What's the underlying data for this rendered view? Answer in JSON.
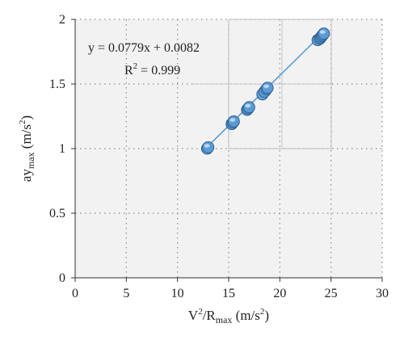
{
  "chart_data": {
    "type": "scatter",
    "title": "",
    "xlabel": {
      "main": "V",
      "sup": "2",
      "mid": "/R",
      "sub": "max",
      "unit_open": " (m/s",
      "unit_sup": "2",
      "unit_close": ")"
    },
    "ylabel": {
      "main": "ay",
      "sub": "max",
      "unit_open": " (m/s",
      "unit_sup": "2",
      "unit_close": ")"
    },
    "xlim": [
      0,
      30
    ],
    "ylim": [
      0,
      2
    ],
    "xticks": [
      0,
      5,
      10,
      15,
      20,
      25,
      30
    ],
    "yticks": [
      "0",
      "0.5",
      "1",
      "1.5",
      "2"
    ],
    "grid": true,
    "series": [
      {
        "color": "#5b9bd5",
        "points": [
          [
            12.9,
            1.0
          ],
          [
            13.0,
            1.01
          ],
          [
            15.3,
            1.19
          ],
          [
            15.4,
            1.2
          ],
          [
            15.5,
            1.21
          ],
          [
            16.8,
            1.3
          ],
          [
            16.9,
            1.31
          ],
          [
            17.0,
            1.32
          ],
          [
            18.3,
            1.42
          ],
          [
            18.5,
            1.44
          ],
          [
            18.7,
            1.46
          ],
          [
            18.8,
            1.47
          ],
          [
            23.7,
            1.84
          ],
          [
            23.9,
            1.85
          ],
          [
            24.0,
            1.86
          ],
          [
            24.1,
            1.87
          ],
          [
            24.2,
            1.88
          ],
          [
            24.3,
            1.89
          ]
        ]
      }
    ],
    "trendline": {
      "slope": 0.0779,
      "intercept": 0.0082,
      "x_range": [
        12.9,
        24.3
      ],
      "color": "#5b9bd5"
    },
    "annotation": {
      "equation": "y = 0.0779x + 0.0082",
      "r2_main": "R",
      "r2_sup": "2",
      "r2_value": " = 0.999"
    }
  }
}
